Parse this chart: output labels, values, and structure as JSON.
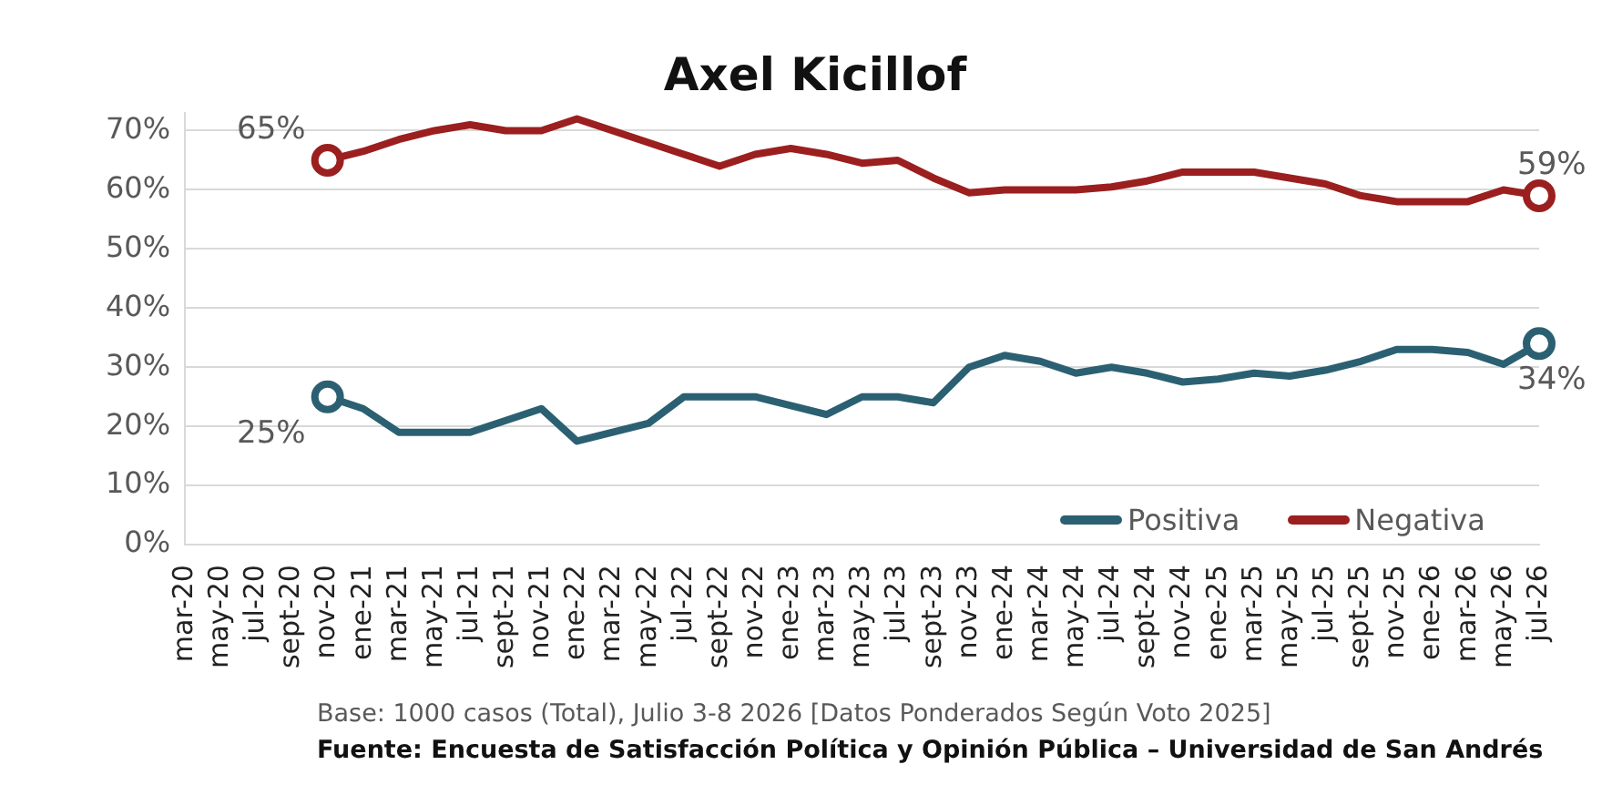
{
  "chart_data": {
    "type": "line",
    "title": "Axel Kicillof",
    "categories": [
      "mar-20",
      "may-20",
      "jul-20",
      "sept-20",
      "nov-20",
      "ene-21",
      "mar-21",
      "may-21",
      "jul-21",
      "sept-21",
      "nov-21",
      "ene-22",
      "mar-22",
      "may-22",
      "jul-22",
      "sept-22",
      "nov-22",
      "ene-23",
      "mar-23",
      "may-23",
      "jul-23",
      "sept-23",
      "nov-23",
      "ene-24",
      "mar-24",
      "may-24",
      "jul-24",
      "sept-24",
      "nov-24",
      "ene-25",
      "mar-25",
      "may-25",
      "jul-25",
      "sept-25",
      "nov-25",
      "ene-26",
      "mar-26",
      "may-26",
      "jul-26"
    ],
    "series": [
      {
        "name": "Positiva",
        "color": "#2b6072",
        "values": [
          null,
          null,
          null,
          null,
          25,
          23,
          19,
          19,
          19,
          21,
          23,
          17.5,
          19,
          20.5,
          25,
          25,
          25,
          23.5,
          22,
          25,
          25,
          24,
          30,
          32,
          31,
          29,
          30,
          29,
          27.5,
          28,
          29,
          28.5,
          29.5,
          31,
          33,
          33,
          32.5,
          30.5,
          34
        ],
        "value_labels": [
          null,
          null,
          null,
          null,
          "25%",
          null,
          null,
          null,
          null,
          null,
          null,
          null,
          null,
          null,
          null,
          null,
          null,
          null,
          null,
          null,
          null,
          null,
          null,
          null,
          null,
          null,
          null,
          null,
          null,
          null,
          null,
          null,
          null,
          null,
          null,
          null,
          null,
          null,
          "34%"
        ]
      },
      {
        "name": "Negativa",
        "color": "#9b1f1f",
        "values": [
          null,
          null,
          null,
          null,
          65,
          66.5,
          68.5,
          70,
          71,
          70,
          70,
          72,
          70,
          68,
          66,
          64,
          66,
          67,
          66,
          64.5,
          65,
          62,
          59.5,
          60,
          60,
          60,
          60.5,
          61.5,
          63,
          63,
          63,
          62,
          61,
          59,
          58,
          58,
          58,
          60,
          59
        ],
        "value_labels": [
          null,
          null,
          null,
          null,
          "65%",
          null,
          null,
          null,
          null,
          null,
          null,
          null,
          null,
          null,
          null,
          null,
          null,
          null,
          null,
          null,
          null,
          null,
          null,
          null,
          null,
          null,
          null,
          null,
          null,
          null,
          null,
          null,
          null,
          null,
          null,
          null,
          null,
          null,
          "59%"
        ]
      }
    ],
    "ylim": [
      0,
      73
    ],
    "yticks": [
      {
        "value": 0,
        "label": "0%"
      },
      {
        "value": 10,
        "label": "10%"
      },
      {
        "value": 20,
        "label": "20%"
      },
      {
        "value": 30,
        "label": "30%"
      },
      {
        "value": 40,
        "label": "40%"
      },
      {
        "value": 50,
        "label": "50%"
      },
      {
        "value": 60,
        "label": "60%"
      },
      {
        "value": 70,
        "label": "70%"
      }
    ],
    "grid": "y",
    "legend": "bottom right",
    "line_style": "solid",
    "annotations": [
      "Base: 1000 casos (Total), Julio 3-8 2026 [Datos Ponderados Según Voto 2025]",
      "Fuente: Encuesta de Satisfacción Política y Opinión Pública – Universidad de San Andrés"
    ]
  }
}
